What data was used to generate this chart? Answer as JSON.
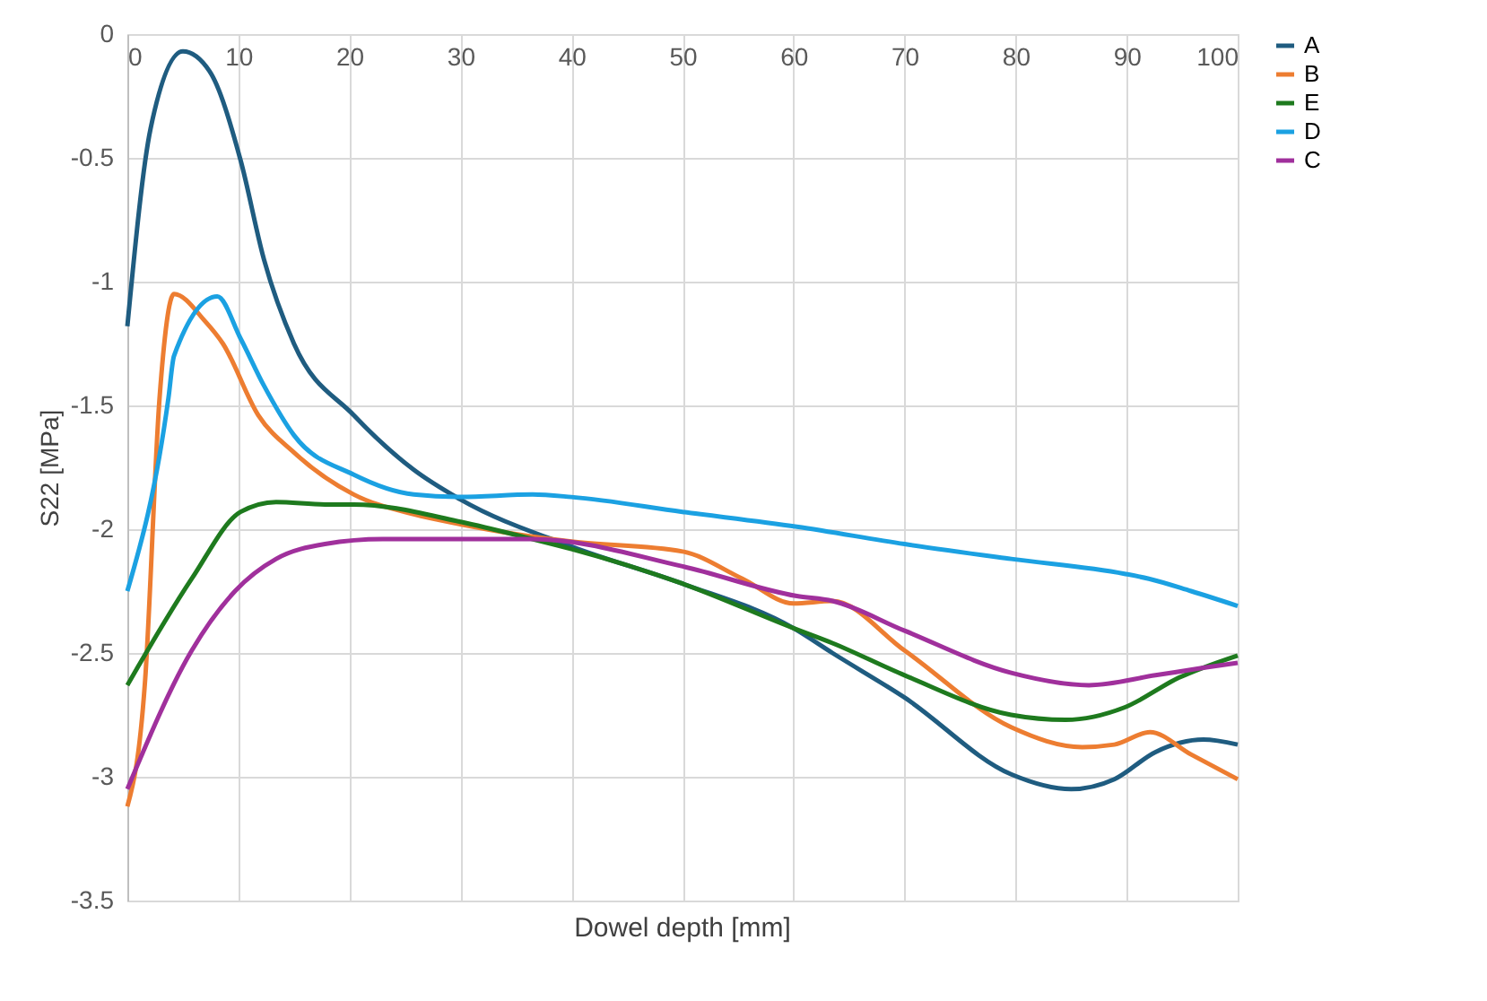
{
  "chart_data": {
    "type": "line",
    "xlabel": "Dowel depth [mm]",
    "ylabel": "S22 [MPa]",
    "xlim": [
      0,
      100
    ],
    "xticks": [
      0,
      10,
      20,
      30,
      40,
      50,
      60,
      70,
      80,
      90,
      100
    ],
    "ylim": [
      -3.5,
      0
    ],
    "yticks": [
      -3.5,
      -3,
      -2.5,
      -2,
      -1.5,
      -1,
      -0.5,
      0
    ],
    "grid": true,
    "legend": "right",
    "marker": "none",
    "line_style": "solid",
    "series": [
      {
        "name": "A",
        "color": "#1f5c80",
        "x": [
          0,
          2.1,
          5,
          7.4,
          10.2,
          12.3,
          15,
          20.4,
          25.8,
          30,
          40,
          50,
          60,
          63.5,
          70,
          79.6,
          85,
          88.9,
          92.6,
          96.9,
          100
        ],
        "values": [
          -1.18,
          -0.38,
          -0.07,
          -0.15,
          -0.51,
          -0.91,
          -1.25,
          -1.54,
          -1.76,
          -1.88,
          -2.07,
          -2.22,
          -2.4,
          -2.5,
          -2.68,
          -2.99,
          -3.05,
          -3.01,
          -2.9,
          -2.85,
          -2.87
        ]
      },
      {
        "name": "B",
        "color": "#ed7d31",
        "x": [
          0,
          1.6,
          2.9,
          4.2,
          7,
          8.6,
          11.8,
          15,
          20.4,
          25.8,
          30,
          35,
          40,
          50,
          55.4,
          60,
          63.5,
          70,
          79.6,
          86,
          88.9,
          92.1,
          95.8,
          100
        ],
        "values": [
          -3.12,
          -2.61,
          -1.47,
          -1.05,
          -1.16,
          -1.25,
          -1.54,
          -1.69,
          -1.86,
          -1.94,
          -1.98,
          -2.02,
          -2.05,
          -2.09,
          -2.2,
          -2.3,
          -2.29,
          -2.49,
          -2.8,
          -2.88,
          -2.87,
          -2.82,
          -2.91,
          -3.01
        ]
      },
      {
        "name": "E",
        "color": "#1e7a1e",
        "x": [
          0,
          5.8,
          10.2,
          13.4,
          17.8,
          20.4,
          30,
          36.5,
          40,
          50,
          60,
          63.5,
          70,
          79.6,
          84.5,
          89.8,
          94.7,
          100
        ],
        "values": [
          -2.63,
          -2.2,
          -1.93,
          -1.89,
          -1.9,
          -1.9,
          -1.97,
          -2.04,
          -2.08,
          -2.22,
          -2.4,
          -2.46,
          -2.59,
          -2.75,
          -2.77,
          -2.72,
          -2.6,
          -2.51
        ]
      },
      {
        "name": "D",
        "color": "#1ba1e2",
        "x": [
          0,
          3.7,
          4.2,
          8.1,
          10.2,
          12.3,
          15,
          20.4,
          25.8,
          30,
          36.5,
          40,
          50,
          60.3,
          70,
          79.6,
          89.8,
          92,
          95.8,
          100
        ],
        "values": [
          -2.25,
          -1.47,
          -1.3,
          -1.06,
          -1.23,
          -1.42,
          -1.62,
          -1.78,
          -1.86,
          -1.87,
          -1.86,
          -1.87,
          -1.93,
          -1.99,
          -2.06,
          -2.12,
          -2.18,
          -2.2,
          -2.25,
          -2.31
        ]
      },
      {
        "name": "C",
        "color": "#a0309c",
        "x": [
          0,
          5.8,
          9.7,
          13.4,
          17.8,
          23,
          31.2,
          36.5,
          50,
          60.3,
          63.5,
          70,
          79.6,
          86.6,
          92.6,
          96.9,
          100
        ],
        "values": [
          -3.05,
          -2.49,
          -2.25,
          -2.12,
          -2.06,
          -2.04,
          -2.04,
          -2.04,
          -2.15,
          -2.27,
          -2.29,
          -2.41,
          -2.58,
          -2.63,
          -2.59,
          -2.56,
          -2.54
        ]
      }
    ]
  }
}
